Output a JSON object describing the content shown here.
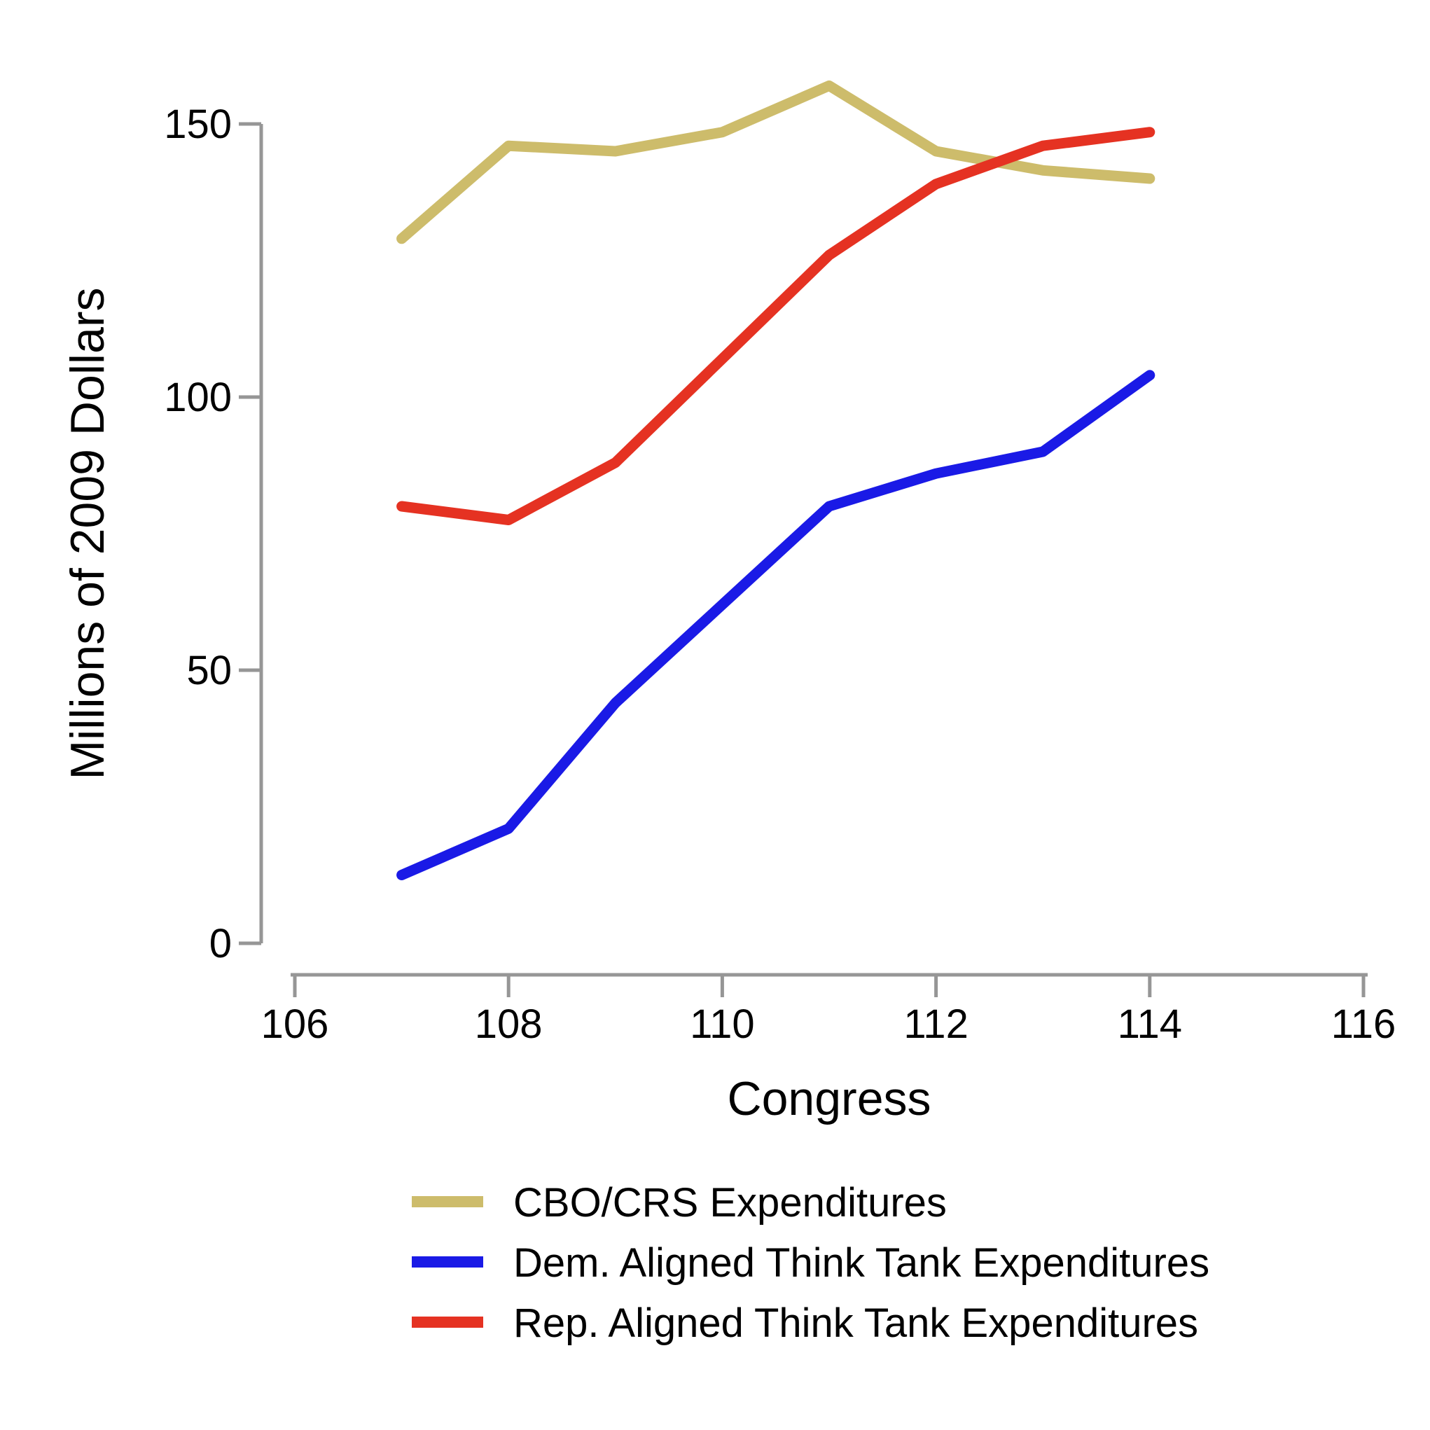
{
  "chart_data": {
    "type": "line",
    "title": "",
    "xlabel": "Congress",
    "ylabel": "Millions of 2009 Dollars",
    "x": [
      107,
      108,
      109,
      110,
      111,
      112,
      113,
      114
    ],
    "series": [
      {
        "name": "CBO/CRS Expenditures",
        "color": "#CDBC6B",
        "values": [
          129,
          146,
          145,
          148.5,
          157,
          145,
          141.5,
          140
        ]
      },
      {
        "name": "Dem. Aligned Think Tank Expenditures",
        "color": "#1A1AE6",
        "values": [
          12.5,
          21,
          44,
          62,
          80,
          86,
          90,
          104
        ]
      },
      {
        "name": "Rep. Aligned Think Tank Expenditures",
        "color": "#E53222",
        "values": [
          80,
          77.5,
          88,
          107,
          126,
          139,
          146,
          148.5
        ]
      }
    ],
    "x_ticks": [
      106,
      108,
      110,
      112,
      114,
      116
    ],
    "y_ticks": [
      0,
      50,
      100,
      150
    ],
    "xlim": [
      106,
      116
    ],
    "ylim": [
      0,
      150
    ],
    "grid": "off",
    "legend_position": "below-plot-left",
    "axis_color": "#969696",
    "text_color": "#000000",
    "background_color": "#ffffff"
  }
}
